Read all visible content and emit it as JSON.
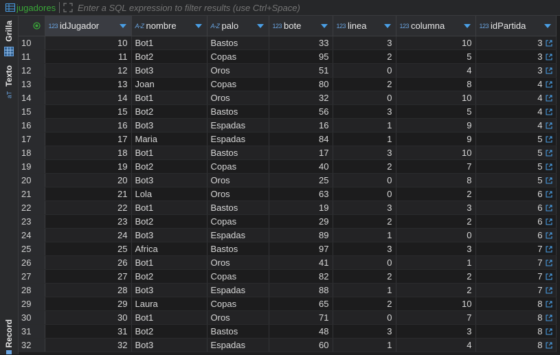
{
  "toolbar": {
    "table_name": "jugadores",
    "filter_placeholder": "Enter a SQL expression to filter results (use Ctrl+Space)"
  },
  "sidebar": {
    "tabs": [
      {
        "label": "Grilla"
      },
      {
        "label": "Texto"
      },
      {
        "label": "Record"
      }
    ]
  },
  "columns": [
    {
      "name": "idJugador",
      "type_icon": "123"
    },
    {
      "name": "nombre",
      "type_icon": "A-Z"
    },
    {
      "name": "palo",
      "type_icon": "A-Z"
    },
    {
      "name": "bote",
      "type_icon": "123"
    },
    {
      "name": "linea",
      "type_icon": "123"
    },
    {
      "name": "columna",
      "type_icon": "123"
    },
    {
      "name": "idPartida",
      "type_icon": "123"
    }
  ],
  "rows": [
    {
      "rn": "10",
      "cells": [
        "10",
        "Bot1",
        "Bastos",
        "33",
        "3",
        "10",
        "3"
      ]
    },
    {
      "rn": "11",
      "cells": [
        "11",
        "Bot2",
        "Copas",
        "95",
        "2",
        "5",
        "3"
      ]
    },
    {
      "rn": "12",
      "cells": [
        "12",
        "Bot3",
        "Oros",
        "51",
        "0",
        "4",
        "3"
      ]
    },
    {
      "rn": "13",
      "cells": [
        "13",
        "Joan",
        "Copas",
        "80",
        "2",
        "8",
        "4"
      ]
    },
    {
      "rn": "14",
      "cells": [
        "14",
        "Bot1",
        "Oros",
        "32",
        "0",
        "10",
        "4"
      ]
    },
    {
      "rn": "15",
      "cells": [
        "15",
        "Bot2",
        "Bastos",
        "56",
        "3",
        "5",
        "4"
      ]
    },
    {
      "rn": "16",
      "cells": [
        "16",
        "Bot3",
        "Espadas",
        "16",
        "1",
        "9",
        "4"
      ]
    },
    {
      "rn": "17",
      "cells": [
        "17",
        "Maria",
        "Espadas",
        "84",
        "1",
        "9",
        "5"
      ]
    },
    {
      "rn": "18",
      "cells": [
        "18",
        "Bot1",
        "Bastos",
        "17",
        "3",
        "10",
        "5"
      ]
    },
    {
      "rn": "19",
      "cells": [
        "19",
        "Bot2",
        "Copas",
        "40",
        "2",
        "7",
        "5"
      ]
    },
    {
      "rn": "20",
      "cells": [
        "20",
        "Bot3",
        "Oros",
        "25",
        "0",
        "8",
        "5"
      ]
    },
    {
      "rn": "21",
      "cells": [
        "21",
        "Lola",
        "Oros",
        "63",
        "0",
        "2",
        "6"
      ]
    },
    {
      "rn": "22",
      "cells": [
        "22",
        "Bot1",
        "Bastos",
        "19",
        "3",
        "3",
        "6"
      ]
    },
    {
      "rn": "23",
      "cells": [
        "23",
        "Bot2",
        "Copas",
        "29",
        "2",
        "2",
        "6"
      ]
    },
    {
      "rn": "24",
      "cells": [
        "24",
        "Bot3",
        "Espadas",
        "89",
        "1",
        "0",
        "6"
      ]
    },
    {
      "rn": "25",
      "cells": [
        "25",
        "Africa",
        "Bastos",
        "97",
        "3",
        "3",
        "7"
      ]
    },
    {
      "rn": "26",
      "cells": [
        "26",
        "Bot1",
        "Oros",
        "41",
        "0",
        "1",
        "7"
      ]
    },
    {
      "rn": "27",
      "cells": [
        "27",
        "Bot2",
        "Copas",
        "82",
        "2",
        "2",
        "7"
      ]
    },
    {
      "rn": "28",
      "cells": [
        "28",
        "Bot3",
        "Espadas",
        "88",
        "1",
        "2",
        "7"
      ]
    },
    {
      "rn": "29",
      "cells": [
        "29",
        "Laura",
        "Copas",
        "65",
        "2",
        "10",
        "8"
      ]
    },
    {
      "rn": "30",
      "cells": [
        "30",
        "Bot1",
        "Oros",
        "71",
        "0",
        "7",
        "8"
      ]
    },
    {
      "rn": "31",
      "cells": [
        "31",
        "Bot2",
        "Bastos",
        "48",
        "3",
        "3",
        "8"
      ]
    },
    {
      "rn": "32",
      "cells": [
        "32",
        "Bot3",
        "Espadas",
        "60",
        "1",
        "4",
        "8"
      ]
    }
  ],
  "colors": {
    "accent": "#4a9fe6",
    "table_name": "#3aa639",
    "background": "#1e1e1f"
  }
}
